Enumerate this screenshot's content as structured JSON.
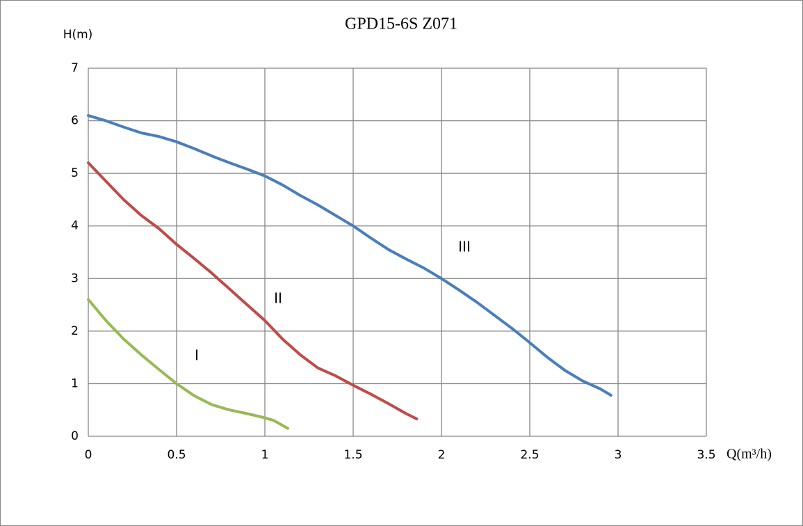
{
  "chart_data": {
    "type": "line",
    "title": "GPD15-6S Z071",
    "y_label": "H(m)",
    "x_label": "Q(m³/h)",
    "xlim": [
      0,
      3.5
    ],
    "xticks": [
      0,
      0.5,
      1,
      1.5,
      2,
      2.5,
      3,
      3.5
    ],
    "ylim": [
      0,
      7
    ],
    "yticks": [
      0,
      1,
      2,
      3,
      4,
      5,
      6,
      7
    ],
    "grid": true,
    "series": [
      {
        "name": "I",
        "color": "#98b954",
        "x": [
          0,
          0.1,
          0.2,
          0.3,
          0.4,
          0.5,
          0.6,
          0.7,
          0.8,
          0.9,
          1.0,
          1.05,
          1.13
        ],
        "values": [
          2.6,
          2.2,
          1.85,
          1.55,
          1.27,
          1.0,
          0.77,
          0.6,
          0.5,
          0.43,
          0.35,
          0.3,
          0.15
        ]
      },
      {
        "name": "II",
        "color": "#be4b48",
        "x": [
          0,
          0.1,
          0.2,
          0.3,
          0.4,
          0.5,
          0.6,
          0.7,
          0.8,
          0.9,
          1.0,
          1.1,
          1.2,
          1.3,
          1.4,
          1.5,
          1.6,
          1.7,
          1.8,
          1.86
        ],
        "values": [
          5.2,
          4.85,
          4.5,
          4.2,
          3.95,
          3.65,
          3.38,
          3.1,
          2.8,
          2.5,
          2.2,
          1.85,
          1.55,
          1.3,
          1.15,
          0.97,
          0.8,
          0.62,
          0.43,
          0.33
        ]
      },
      {
        "name": "III",
        "color": "#4a7ebb",
        "x": [
          0,
          0.1,
          0.2,
          0.3,
          0.4,
          0.5,
          0.6,
          0.7,
          0.8,
          0.9,
          1.0,
          1.1,
          1.2,
          1.3,
          1.4,
          1.5,
          1.6,
          1.7,
          1.8,
          1.9,
          2.0,
          2.1,
          2.2,
          2.3,
          2.4,
          2.5,
          2.6,
          2.7,
          2.8,
          2.9,
          2.96
        ],
        "values": [
          6.1,
          6.0,
          5.88,
          5.77,
          5.7,
          5.6,
          5.47,
          5.33,
          5.2,
          5.08,
          4.95,
          4.78,
          4.58,
          4.4,
          4.2,
          4.0,
          3.77,
          3.55,
          3.37,
          3.2,
          3.0,
          2.78,
          2.55,
          2.3,
          2.05,
          1.78,
          1.5,
          1.25,
          1.05,
          0.9,
          0.78
        ]
      }
    ]
  }
}
